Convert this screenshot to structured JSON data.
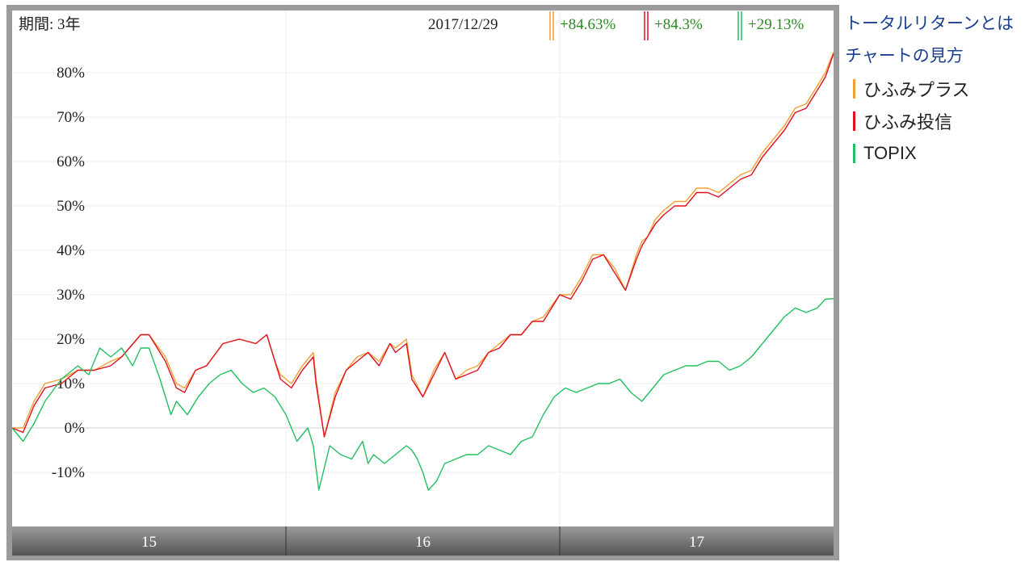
{
  "header": {
    "period_label": "期間: 3年",
    "date": "2017/12/29",
    "values": [
      "+84.63%",
      "+84.3%",
      "+29.13%"
    ]
  },
  "side": {
    "links": [
      "トータルリターンとは",
      "チャートの見方"
    ],
    "legend": [
      {
        "name": "ひふみプラス",
        "color": "#f0a030"
      },
      {
        "name": "ひふみ投信",
        "color": "#e01020"
      },
      {
        "name": "TOPIX",
        "color": "#20c060"
      }
    ]
  },
  "chart_data": {
    "type": "line",
    "xlim": [
      2015.0,
      2018.0
    ],
    "ylim": [
      -22,
      92
    ],
    "y_ticks": [
      80,
      70,
      60,
      50,
      40,
      30,
      20,
      10,
      0,
      -10
    ],
    "y_tick_labels": [
      "80%",
      "70%",
      "60%",
      "50%",
      "40%",
      "30%",
      "20%",
      "10%",
      "0%",
      "-10%"
    ],
    "x_ticks": [
      2015.5,
      2016.5,
      2017.5
    ],
    "x_tick_labels": [
      "15",
      "16",
      "17"
    ],
    "gridlines_x": [
      2016.0,
      2017.0
    ],
    "grid": true,
    "series": [
      {
        "name": "ひふみプラス",
        "color": "#f0a030",
        "x": [
          2015.0,
          2015.04,
          2015.08,
          2015.12,
          2015.18,
          2015.24,
          2015.3,
          2015.36,
          2015.4,
          2015.47,
          2015.5,
          2015.56,
          2015.6,
          2015.63,
          2015.67,
          2015.71,
          2015.77,
          2015.83,
          2015.89,
          2015.93,
          2015.96,
          2015.98,
          2016.02,
          2016.06,
          2016.1,
          2016.11,
          2016.14,
          2016.18,
          2016.22,
          2016.26,
          2016.3,
          2016.34,
          2016.38,
          2016.4,
          2016.44,
          2016.46,
          2016.5,
          2016.54,
          2016.58,
          2016.62,
          2016.66,
          2016.7,
          2016.74,
          2016.78,
          2016.82,
          2016.86,
          2016.9,
          2016.94,
          2017.0,
          2017.04,
          2017.08,
          2017.12,
          2017.16,
          2017.2,
          2017.24,
          2017.28,
          2017.3,
          2017.32,
          2017.35,
          2017.38,
          2017.42,
          2017.46,
          2017.5,
          2017.54,
          2017.58,
          2017.62,
          2017.66,
          2017.7,
          2017.74,
          2017.78,
          2017.82,
          2017.86,
          2017.9,
          2017.94,
          2017.97,
          2018.0
        ],
        "values": [
          0,
          0,
          6,
          10,
          11,
          13,
          13,
          15,
          16,
          21,
          21,
          16,
          10,
          9,
          13,
          14,
          19,
          20,
          19,
          21,
          15,
          12,
          10,
          14,
          17,
          11,
          -2,
          8,
          13,
          16,
          17,
          15,
          19,
          18,
          20,
          12,
          7,
          13,
          17,
          11,
          13,
          14,
          17,
          19,
          21,
          21,
          24,
          25,
          30,
          30,
          34,
          39,
          39,
          36,
          31,
          39,
          42,
          43,
          47,
          49,
          51,
          51,
          54,
          54,
          53,
          55,
          57,
          58,
          62,
          65,
          68,
          72,
          73,
          77,
          80,
          84.63
        ]
      },
      {
        "name": "ひふみ投信",
        "color": "#e01020",
        "x": [
          2015.0,
          2015.04,
          2015.08,
          2015.12,
          2015.18,
          2015.24,
          2015.3,
          2015.36,
          2015.4,
          2015.47,
          2015.5,
          2015.56,
          2015.6,
          2015.63,
          2015.67,
          2015.71,
          2015.77,
          2015.83,
          2015.89,
          2015.93,
          2015.96,
          2015.98,
          2016.02,
          2016.06,
          2016.1,
          2016.11,
          2016.14,
          2016.18,
          2016.22,
          2016.26,
          2016.3,
          2016.34,
          2016.38,
          2016.4,
          2016.44,
          2016.46,
          2016.5,
          2016.54,
          2016.58,
          2016.62,
          2016.66,
          2016.7,
          2016.74,
          2016.78,
          2016.82,
          2016.86,
          2016.9,
          2016.94,
          2017.0,
          2017.04,
          2017.08,
          2017.12,
          2017.16,
          2017.2,
          2017.24,
          2017.28,
          2017.3,
          2017.32,
          2017.35,
          2017.38,
          2017.42,
          2017.46,
          2017.5,
          2017.54,
          2017.58,
          2017.62,
          2017.66,
          2017.7,
          2017.74,
          2017.78,
          2017.82,
          2017.86,
          2017.9,
          2017.94,
          2017.97,
          2018.0
        ],
        "values": [
          0,
          -1,
          5,
          9,
          10,
          13,
          13,
          14,
          16,
          21,
          21,
          15,
          9,
          8,
          13,
          14,
          19,
          20,
          19,
          21,
          15,
          11,
          9,
          13,
          16,
          10,
          -2,
          7,
          13,
          15,
          17,
          14,
          19,
          17,
          19,
          11,
          7,
          12,
          17,
          11,
          12,
          13,
          17,
          18,
          21,
          21,
          24,
          24,
          30,
          29,
          33,
          38,
          39,
          35,
          31,
          38,
          41,
          43,
          46,
          48,
          50,
          50,
          53,
          53,
          52,
          54,
          56,
          57,
          61,
          64,
          67,
          71,
          72,
          76,
          79,
          84.3
        ]
      },
      {
        "name": "TOPIX",
        "color": "#20c060",
        "x": [
          2015.0,
          2015.04,
          2015.08,
          2015.12,
          2015.18,
          2015.24,
          2015.28,
          2015.32,
          2015.36,
          2015.4,
          2015.44,
          2015.47,
          2015.5,
          2015.54,
          2015.58,
          2015.6,
          2015.64,
          2015.68,
          2015.72,
          2015.76,
          2015.8,
          2015.84,
          2015.88,
          2015.92,
          2015.96,
          2016.0,
          2016.04,
          2016.08,
          2016.1,
          2016.12,
          2016.14,
          2016.16,
          2016.2,
          2016.24,
          2016.28,
          2016.3,
          2016.32,
          2016.36,
          2016.4,
          2016.44,
          2016.46,
          2016.48,
          2016.5,
          2016.52,
          2016.55,
          2016.58,
          2016.62,
          2016.66,
          2016.7,
          2016.74,
          2016.78,
          2016.82,
          2016.86,
          2016.9,
          2016.94,
          2016.98,
          2017.02,
          2017.06,
          2017.1,
          2017.14,
          2017.18,
          2017.22,
          2017.26,
          2017.3,
          2017.34,
          2017.38,
          2017.42,
          2017.46,
          2017.5,
          2017.54,
          2017.58,
          2017.62,
          2017.66,
          2017.7,
          2017.74,
          2017.78,
          2017.82,
          2017.86,
          2017.9,
          2017.94,
          2017.97,
          2018.0
        ],
        "values": [
          0,
          -3,
          1,
          6,
          11,
          14,
          12,
          18,
          16,
          18,
          14,
          18,
          18,
          11,
          3,
          6,
          3,
          7,
          10,
          12,
          13,
          10,
          8,
          9,
          7,
          3,
          -3,
          0,
          -4,
          -14,
          -9,
          -4,
          -6,
          -7,
          -3,
          -8,
          -6,
          -8,
          -6,
          -4,
          -5,
          -7,
          -10,
          -14,
          -12,
          -8,
          -7,
          -6,
          -6,
          -4,
          -5,
          -6,
          -3,
          -2,
          3,
          7,
          9,
          8,
          9,
          10,
          10,
          11,
          8,
          6,
          9,
          12,
          13,
          14,
          14,
          15,
          15,
          13,
          14,
          16,
          19,
          22,
          25,
          27,
          26,
          27,
          29,
          29.13
        ]
      }
    ]
  }
}
